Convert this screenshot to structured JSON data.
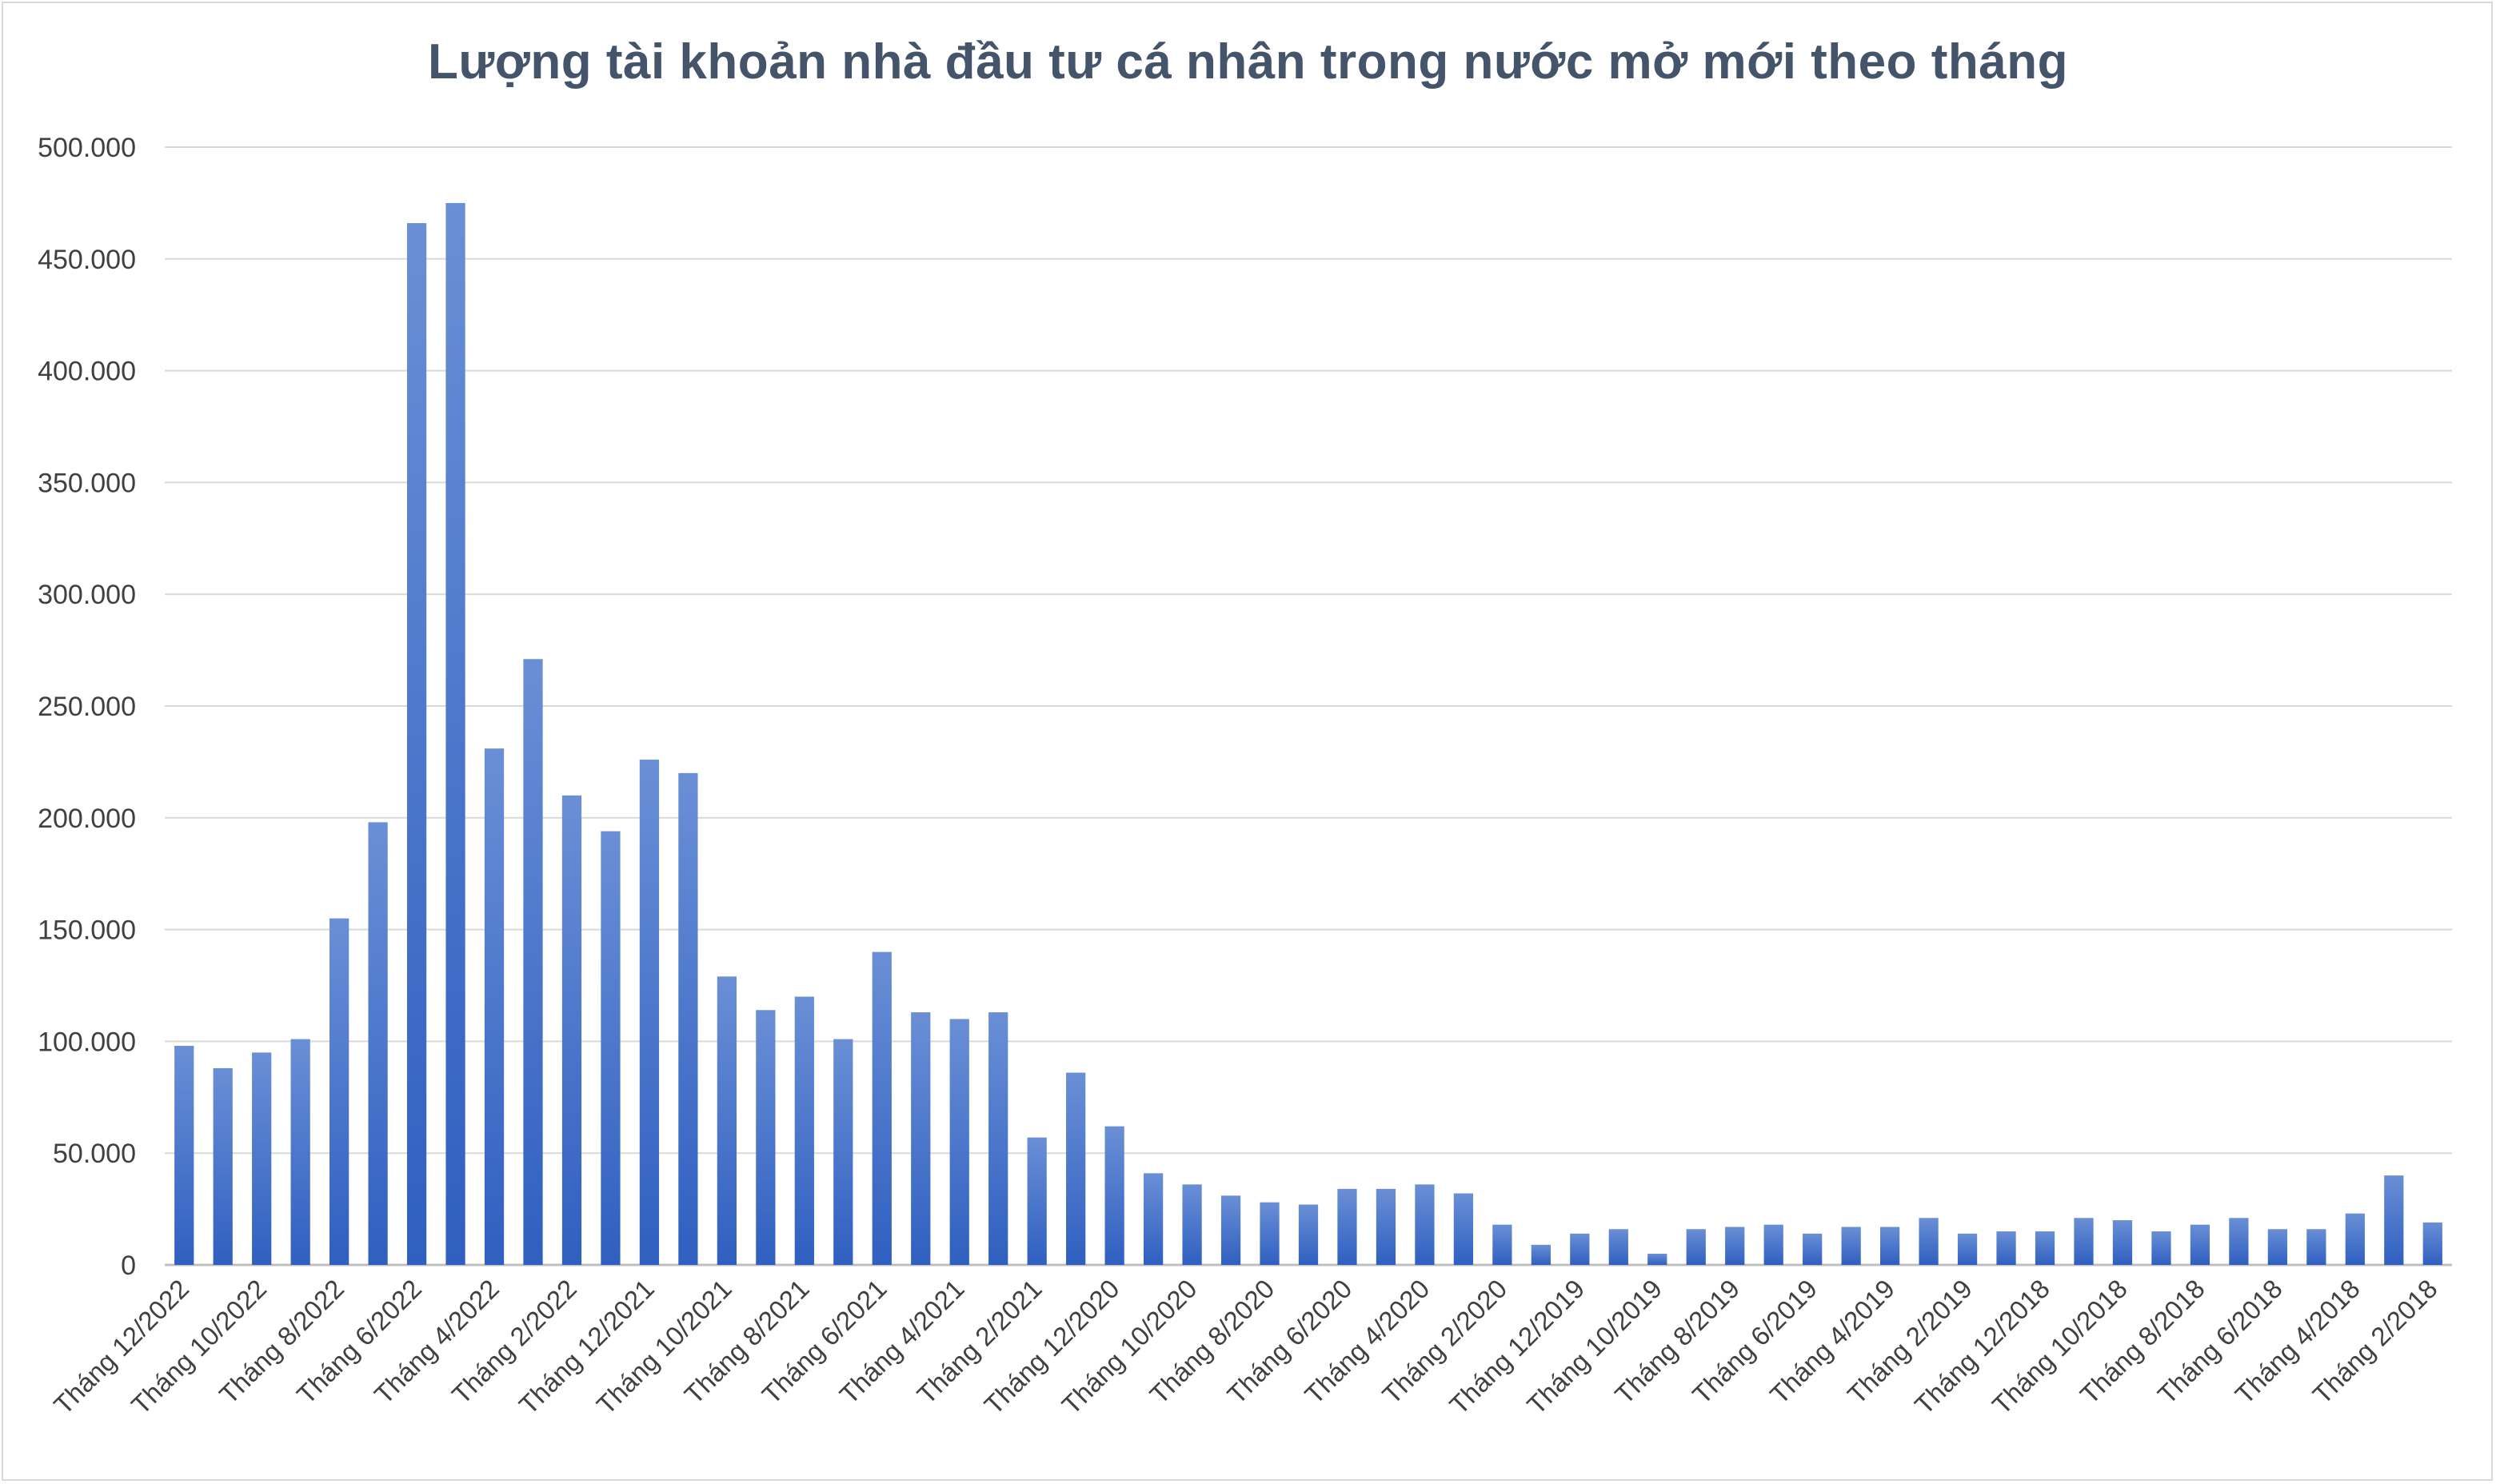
{
  "chart_data": {
    "type": "bar",
    "title": "Lượng tài khoản nhà đầu tư cá nhân trong nước mở mới theo tháng",
    "xlabel": "",
    "ylabel": "",
    "ylim": [
      0,
      500000
    ],
    "yticks": [
      0,
      50000,
      100000,
      150000,
      200000,
      250000,
      300000,
      350000,
      400000,
      450000,
      500000
    ],
    "ytick_labels": [
      "0",
      "50.000",
      "100.000",
      "150.000",
      "200.000",
      "250.000",
      "300.000",
      "350.000",
      "400.000",
      "450.000",
      "500.000"
    ],
    "grid": true,
    "bar_color": "#4472c4",
    "categories": [
      "Tháng 12/2022",
      "Tháng 11/2022",
      "Tháng 10/2022",
      "Tháng 9/2022",
      "Tháng 8/2022",
      "Tháng 7/2022",
      "Tháng 6/2022",
      "Tháng 5/2022",
      "Tháng 4/2022",
      "Tháng 3/2022",
      "Tháng 2/2022",
      "Tháng 1/2022",
      "Tháng 12/2021",
      "Tháng 11/2021",
      "Tháng 10/2021",
      "Tháng 9/2021",
      "Tháng 8/2021",
      "Tháng 7/2021",
      "Tháng 6/2021",
      "Tháng 5/2021",
      "Tháng 4/2021",
      "Tháng 3/2021",
      "Tháng 2/2021",
      "Tháng 1/2021",
      "Tháng 12/2020",
      "Tháng 11/2020",
      "Tháng 10/2020",
      "Tháng 9/2020",
      "Tháng 8/2020",
      "Tháng 7/2020",
      "Tháng 6/2020",
      "Tháng 5/2020",
      "Tháng 4/2020",
      "Tháng 3/2020",
      "Tháng 2/2020",
      "Tháng 1/2020",
      "Tháng 12/2019",
      "Tháng 11/2019",
      "Tháng 10/2019",
      "Tháng 9/2019",
      "Tháng 8/2019",
      "Tháng 7/2019",
      "Tháng 6/2019",
      "Tháng 5/2019",
      "Tháng 4/2019",
      "Tháng 3/2019",
      "Tháng 2/2019",
      "Tháng 1/2019",
      "Tháng 12/2018",
      "Tháng 11/2018",
      "Tháng 10/2018",
      "Tháng 9/2018",
      "Tháng 8/2018",
      "Tháng 7/2018",
      "Tháng 6/2018",
      "Tháng 5/2018",
      "Tháng 4/2018",
      "Tháng 3/2018",
      "Tháng 2/2018"
    ],
    "shown_tick_every": 2,
    "values": [
      98000,
      88000,
      95000,
      101000,
      155000,
      198000,
      466000,
      475000,
      231000,
      271000,
      210000,
      194000,
      226000,
      220000,
      129000,
      114000,
      120000,
      101000,
      140000,
      113000,
      110000,
      113000,
      57000,
      86000,
      62000,
      41000,
      36000,
      31000,
      28000,
      27000,
      34000,
      34000,
      36000,
      32000,
      18000,
      9000,
      14000,
      16000,
      5000,
      16000,
      17000,
      18000,
      14000,
      17000,
      17000,
      21000,
      14000,
      15000,
      15000,
      21000,
      20000,
      15000,
      18000,
      21000,
      16000,
      16000,
      23000,
      40000,
      19000
    ]
  }
}
